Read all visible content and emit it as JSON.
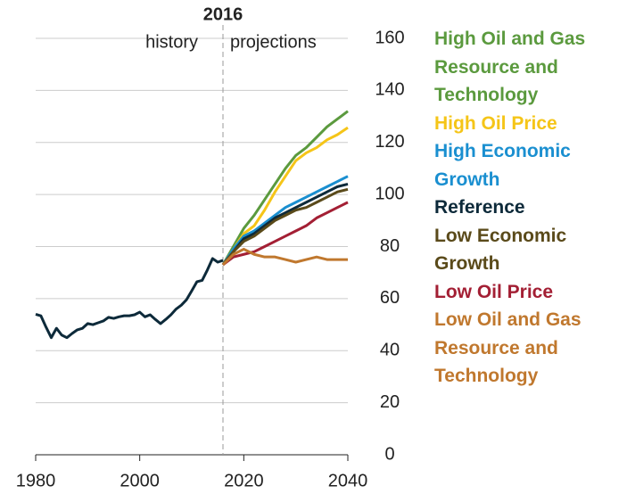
{
  "chart_data": {
    "type": "line",
    "divider": {
      "value": 2016,
      "label": "2016"
    },
    "annotations": [
      "history",
      "projections"
    ],
    "x": [
      1980,
      1981,
      1982,
      1983,
      1984,
      1985,
      1986,
      1987,
      1988,
      1989,
      1990,
      1991,
      1992,
      1993,
      1994,
      1995,
      1996,
      1997,
      1998,
      1999,
      2000,
      2001,
      2002,
      2003,
      2004,
      2005,
      2006,
      2007,
      2008,
      2009,
      2010,
      2011,
      2012,
      2013,
      2014,
      2015,
      2016,
      2018,
      2020,
      2022,
      2024,
      2026,
      2028,
      2030,
      2032,
      2034,
      2036,
      2038,
      2040
    ],
    "xlim": [
      1980,
      2040
    ],
    "xticks": [
      1980,
      2000,
      2020,
      2040
    ],
    "ylim": [
      0,
      160
    ],
    "yticks": [
      0,
      20,
      40,
      60,
      80,
      100,
      120,
      140,
      160
    ],
    "grid": true,
    "series": [
      {
        "color": "#0d2a3a",
        "values": [
          54,
          53.4,
          49,
          45,
          48.6,
          46,
          45,
          46.6,
          48,
          48.6,
          50.4,
          50,
          50.7,
          51.4,
          52.8,
          52.4,
          53,
          53.4,
          53.4,
          53.8,
          54.8,
          53,
          53.8,
          52,
          50.4,
          52,
          53.8,
          56,
          57.5,
          59.6,
          63,
          66.5,
          67,
          71,
          75.4,
          74,
          74.7,
          null,
          null,
          null,
          null,
          null,
          null,
          null,
          null,
          null,
          null,
          null,
          null
        ]
      },
      {
        "name": "High Oil and Gas Resource and Technology",
        "color": "#5b9a3e",
        "values": [
          null,
          null,
          null,
          null,
          null,
          null,
          null,
          null,
          null,
          null,
          null,
          null,
          null,
          null,
          null,
          null,
          null,
          null,
          null,
          null,
          null,
          null,
          null,
          null,
          null,
          null,
          null,
          null,
          null,
          null,
          null,
          null,
          null,
          null,
          null,
          null,
          73,
          80,
          87,
          92,
          98,
          104,
          110,
          115,
          118,
          122,
          126,
          129,
          132
        ]
      },
      {
        "name": "High Oil Price",
        "color": "#f5c518",
        "values": [
          null,
          null,
          null,
          null,
          null,
          null,
          null,
          null,
          null,
          null,
          null,
          null,
          null,
          null,
          null,
          null,
          null,
          null,
          null,
          null,
          null,
          null,
          null,
          null,
          null,
          null,
          null,
          null,
          null,
          null,
          null,
          null,
          null,
          null,
          null,
          null,
          73,
          79,
          85,
          88,
          94,
          101,
          107,
          113,
          116,
          118,
          121,
          123,
          125.7
        ]
      },
      {
        "name": "High Economic Growth",
        "color": "#1a8fd0",
        "values": [
          null,
          null,
          null,
          null,
          null,
          null,
          null,
          null,
          null,
          null,
          null,
          null,
          null,
          null,
          null,
          null,
          null,
          null,
          null,
          null,
          null,
          null,
          null,
          null,
          null,
          null,
          null,
          null,
          null,
          null,
          null,
          null,
          null,
          null,
          null,
          null,
          73,
          79,
          84,
          86,
          89,
          92,
          95,
          97,
          99,
          101,
          103,
          105,
          107
        ]
      },
      {
        "name": "Reference",
        "color": "#0d2a3a",
        "values": [
          null,
          null,
          null,
          null,
          null,
          null,
          null,
          null,
          null,
          null,
          null,
          null,
          null,
          null,
          null,
          null,
          null,
          null,
          null,
          null,
          null,
          null,
          null,
          null,
          null,
          null,
          null,
          null,
          null,
          null,
          null,
          null,
          null,
          null,
          null,
          null,
          73,
          78,
          83,
          85,
          88,
          91,
          93,
          95,
          97,
          99,
          101,
          103,
          104
        ]
      },
      {
        "name": "Low Economic Growth",
        "color": "#5a4a1a",
        "values": [
          null,
          null,
          null,
          null,
          null,
          null,
          null,
          null,
          null,
          null,
          null,
          null,
          null,
          null,
          null,
          null,
          null,
          null,
          null,
          null,
          null,
          null,
          null,
          null,
          null,
          null,
          null,
          null,
          null,
          null,
          null,
          null,
          null,
          null,
          null,
          null,
          73,
          78,
          82,
          84,
          87,
          90,
          92,
          94,
          95,
          97,
          99,
          101,
          102
        ]
      },
      {
        "name": "Low Oil Price",
        "color": "#a31f34",
        "values": [
          null,
          null,
          null,
          null,
          null,
          null,
          null,
          null,
          null,
          null,
          null,
          null,
          null,
          null,
          null,
          null,
          null,
          null,
          null,
          null,
          null,
          null,
          null,
          null,
          null,
          null,
          null,
          null,
          null,
          null,
          null,
          null,
          null,
          null,
          null,
          null,
          73,
          76,
          77,
          78,
          80,
          82,
          84,
          86,
          88,
          91,
          93,
          95,
          97
        ]
      },
      {
        "name": "Low Oil and Gas Resource and Technology",
        "color": "#c0782e",
        "values": [
          null,
          null,
          null,
          null,
          null,
          null,
          null,
          null,
          null,
          null,
          null,
          null,
          null,
          null,
          null,
          null,
          null,
          null,
          null,
          null,
          null,
          null,
          null,
          null,
          null,
          null,
          null,
          null,
          null,
          null,
          null,
          null,
          null,
          null,
          null,
          null,
          73,
          77,
          79,
          77,
          76,
          76,
          75,
          74,
          75,
          76,
          75,
          75,
          75
        ]
      }
    ]
  }
}
